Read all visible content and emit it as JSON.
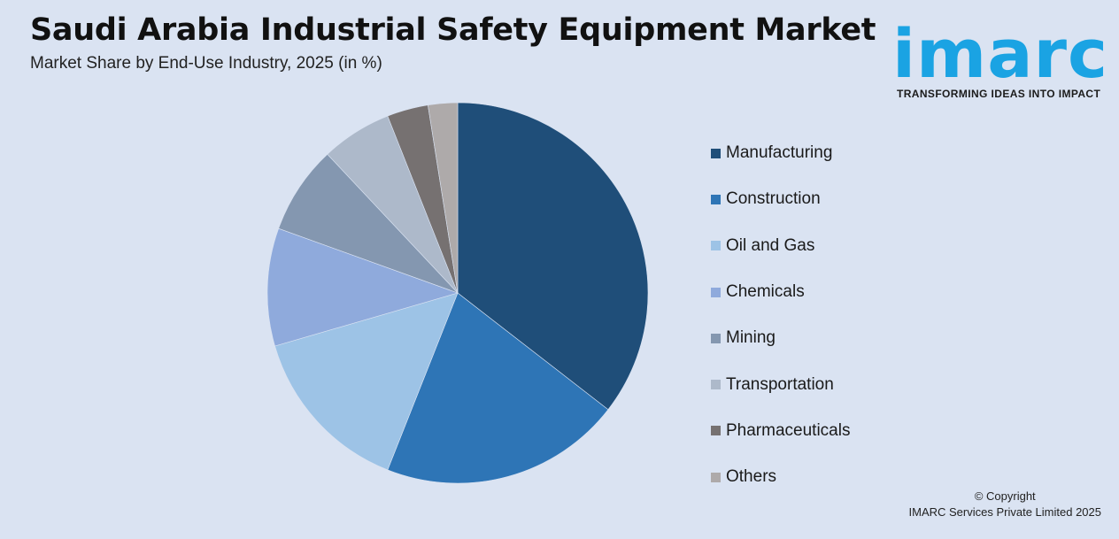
{
  "header": {
    "title": "Saudi Arabia Industrial Safety Equipment Market",
    "subtitle": "Market Share by End-Use Industry, 2025 (in %)"
  },
  "logo": {
    "word": "imarc",
    "tagline": "TRANSFORMING IDEAS INTO IMPACT",
    "color": "#1aa3e3"
  },
  "chart_data": {
    "type": "pie",
    "title": "Saudi Arabia Industrial Safety Equipment Market",
    "subtitle": "Market Share by End-Use Industry, 2025 (in %)",
    "legend_position": "right",
    "slices": [
      {
        "label": "Manufacturing",
        "value": 35.5,
        "color": "#1f4e79"
      },
      {
        "label": "Construction",
        "value": 20.5,
        "color": "#2e75b6"
      },
      {
        "label": "Oil and Gas",
        "value": 14.5,
        "color": "#9dc3e6"
      },
      {
        "label": "Chemicals",
        "value": 10.0,
        "color": "#8faadc"
      },
      {
        "label": "Mining",
        "value": 7.5,
        "color": "#8497b0"
      },
      {
        "label": "Transportation",
        "value": 6.0,
        "color": "#adb9ca"
      },
      {
        "label": "Pharmaceuticals",
        "value": 3.5,
        "color": "#767171"
      },
      {
        "label": "Others",
        "value": 2.5,
        "color": "#aeaaaa"
      }
    ]
  },
  "footer": {
    "copyright_line1": "© Copyright",
    "copyright_line2": "IMARC Services Private Limited 2025"
  }
}
